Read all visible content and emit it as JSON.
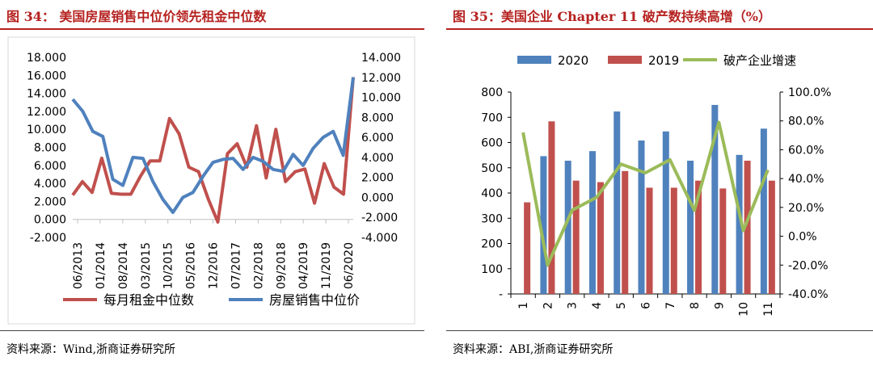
{
  "left_panel": {
    "title": "图 34：  美国房屋销售中位价领先租金中位数",
    "source": "资料来源：Wind,浙商证券研究所"
  },
  "right_panel": {
    "title": "图 35：美国企业 Chapter 11 破产数持续高增（%）",
    "source": "资料来源：ABI,浙商证券研究所"
  },
  "chart_data": [
    {
      "type": "line",
      "title": "",
      "xlabel": "",
      "ylabel": "",
      "x_ticks": [
        "06/2013",
        "01/2014",
        "08/2014",
        "03/2015",
        "10/2015",
        "05/2016",
        "12/2016",
        "07/2017",
        "02/2018",
        "09/2018",
        "04/2019",
        "11/2019",
        "06/2020"
      ],
      "y_left_ticks": [
        "-2.000",
        "0.000",
        "2.000",
        "4.000",
        "6.000",
        "8.000",
        "10.000",
        "12.000",
        "14.000",
        "16.000",
        "18.000"
      ],
      "y_right_ticks": [
        "-4.000",
        "-2.000",
        "0.000",
        "2.000",
        "4.000",
        "6.000",
        "8.000",
        "10.000",
        "12.000",
        "14.000"
      ],
      "ylim_left": [
        -2,
        18
      ],
      "ylim_right": [
        -4,
        14
      ],
      "legend_position": "bottom",
      "series": [
        {
          "name": "每月租金中位数",
          "axis": "left",
          "color": "#c0504d",
          "values": [
            2.7,
            4.2,
            3.0,
            6.8,
            2.9,
            2.8,
            2.8,
            4.8,
            6.5,
            6.5,
            11.2,
            9.5,
            5.8,
            5.3,
            2.3,
            -0.3,
            7.3,
            8.4,
            5.8,
            10.4,
            4.6,
            10.0,
            4.2,
            5.3,
            5.6,
            1.8,
            6.2,
            3.6,
            2.8,
            15.8
          ]
        },
        {
          "name": "房屋销售中位价",
          "axis": "right",
          "color": "#4f81bd",
          "values": [
            9.8,
            8.6,
            6.6,
            6.1,
            1.8,
            1.2,
            4.0,
            3.9,
            1.6,
            -0.2,
            -1.5,
            0.0,
            0.5,
            2.1,
            3.5,
            3.8,
            3.9,
            2.8,
            4.0,
            3.6,
            2.8,
            2.6,
            4.3,
            3.2,
            4.9,
            6.0,
            6.6,
            4.2,
            12.0
          ]
        }
      ]
    },
    {
      "type": "bar",
      "title": "",
      "xlabel": "",
      "ylabel": "",
      "categories": [
        "1",
        "2",
        "3",
        "4",
        "5",
        "6",
        "7",
        "8",
        "9",
        "10",
        "11"
      ],
      "y_left_ticks": [
        "-",
        "100",
        "200",
        "300",
        "400",
        "500",
        "600",
        "700",
        "800"
      ],
      "y_right_ticks": [
        "-40.0%",
        "-20.0%",
        "0.0%",
        "20.0%",
        "40.0%",
        "60.0%",
        "80.0%",
        "100.0%"
      ],
      "ylim_left": [
        0,
        800
      ],
      "ylim_right": [
        -40,
        100
      ],
      "legend_position": "top",
      "series": [
        {
          "name": "2020",
          "kind": "bar",
          "axis": "left",
          "color": "#4f81bd",
          "values": [
            null,
            546,
            528,
            566,
            723,
            608,
            644,
            528,
            749,
            551,
            655
          ]
        },
        {
          "name": "2019",
          "kind": "bar",
          "axis": "left",
          "color": "#c0504d",
          "values": [
            363,
            684,
            449,
            443,
            487,
            421,
            421,
            449,
            418,
            528,
            449
          ]
        },
        {
          "name": "破产企业增速",
          "kind": "line",
          "axis": "right",
          "color": "#9bbb59",
          "values": [
            72,
            -20,
            18,
            27,
            50,
            44,
            53,
            18,
            79,
            4,
            46
          ]
        }
      ]
    }
  ]
}
